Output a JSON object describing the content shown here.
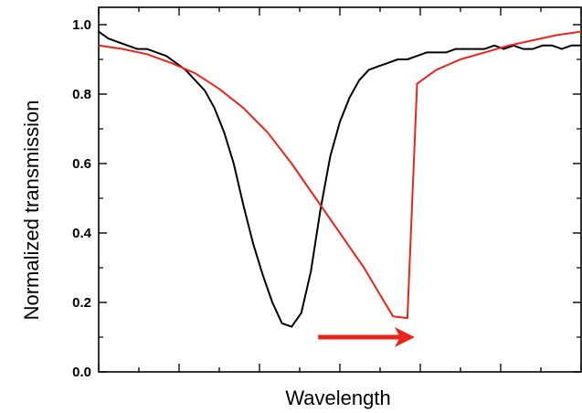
{
  "chart_data": {
    "type": "line",
    "title": "",
    "xlabel": "Wavelength",
    "ylabel": "Normalized transmission",
    "xlim": [
      0,
      1
    ],
    "ylim": [
      0,
      1.05
    ],
    "x_ticks_labeled": false,
    "y_ticks": [
      0.0,
      0.2,
      0.4,
      0.6,
      0.8,
      1.0
    ],
    "y_tick_labels": [
      "0.0",
      "0.2",
      "0.4",
      "0.6",
      "0.8",
      "1.0"
    ],
    "grid": false,
    "legend": "none",
    "series": [
      {
        "color": "#000000",
        "x": [
          0.0,
          0.02,
          0.04,
          0.06,
          0.08,
          0.1,
          0.12,
          0.14,
          0.16,
          0.18,
          0.2,
          0.22,
          0.24,
          0.26,
          0.28,
          0.3,
          0.32,
          0.34,
          0.36,
          0.38,
          0.4,
          0.42,
          0.44,
          0.46,
          0.48,
          0.5,
          0.52,
          0.54,
          0.56,
          0.58,
          0.6,
          0.62,
          0.64,
          0.66,
          0.68,
          0.7,
          0.72,
          0.74,
          0.76,
          0.78,
          0.8,
          0.82,
          0.84,
          0.86,
          0.88,
          0.9,
          0.92,
          0.94,
          0.96,
          0.98,
          1.0
        ],
        "y": [
          0.98,
          0.96,
          0.95,
          0.94,
          0.93,
          0.93,
          0.92,
          0.91,
          0.89,
          0.87,
          0.84,
          0.81,
          0.76,
          0.69,
          0.6,
          0.48,
          0.37,
          0.28,
          0.2,
          0.14,
          0.13,
          0.17,
          0.29,
          0.47,
          0.62,
          0.72,
          0.79,
          0.84,
          0.87,
          0.88,
          0.89,
          0.9,
          0.9,
          0.91,
          0.92,
          0.92,
          0.92,
          0.93,
          0.93,
          0.93,
          0.93,
          0.94,
          0.93,
          0.94,
          0.93,
          0.93,
          0.94,
          0.94,
          0.93,
          0.94,
          0.94
        ]
      },
      {
        "color": "#e8241b",
        "x": [
          0.0,
          0.05,
          0.1,
          0.15,
          0.2,
          0.25,
          0.3,
          0.35,
          0.4,
          0.45,
          0.5,
          0.55,
          0.58,
          0.61,
          0.64,
          0.66,
          0.7,
          0.75,
          0.8,
          0.85,
          0.9,
          0.95,
          1.0
        ],
        "y": [
          0.94,
          0.93,
          0.915,
          0.89,
          0.86,
          0.815,
          0.76,
          0.69,
          0.6,
          0.5,
          0.4,
          0.3,
          0.23,
          0.16,
          0.155,
          0.83,
          0.87,
          0.9,
          0.92,
          0.94,
          0.955,
          0.97,
          0.98
        ]
      }
    ],
    "annotations": [
      {
        "type": "arrow",
        "color": "#e8241b",
        "x_start": 0.455,
        "x_end": 0.655,
        "y": 0.1
      }
    ]
  }
}
